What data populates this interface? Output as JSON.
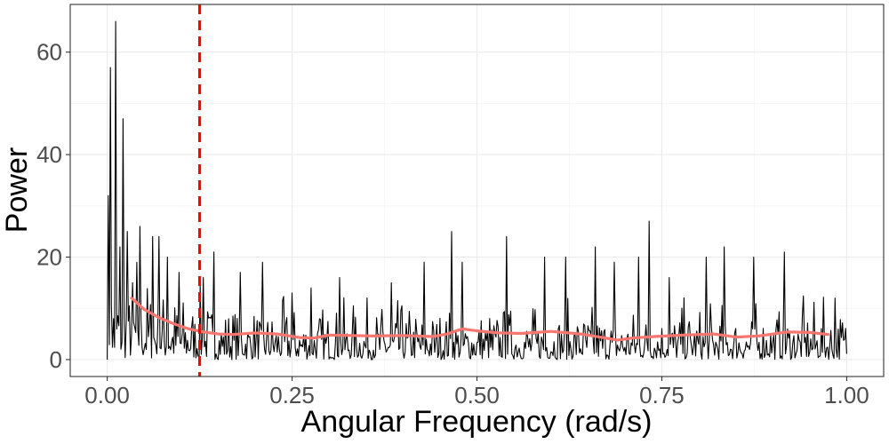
{
  "chart_data": {
    "type": "line",
    "xlabel": "Angular Frequency (rad/s)",
    "ylabel": "Power",
    "xlim": [
      -0.05,
      1.05
    ],
    "ylim": [
      -3.3,
      69.3
    ],
    "x_ticks": [
      0.0,
      0.25,
      0.5,
      0.75,
      1.0
    ],
    "x_tick_labels": [
      "0.00",
      "0.25",
      "0.50",
      "0.75",
      "1.00"
    ],
    "y_ticks": [
      0,
      20,
      40,
      60
    ],
    "y_tick_labels": [
      "0",
      "20",
      "40",
      "60"
    ],
    "grid": true,
    "periodogram": {
      "x_start": 0.0,
      "x_end": 1.0,
      "color": "#000000",
      "peaks": [
        {
          "x": 0.002,
          "y": 32
        },
        {
          "x": 0.005,
          "y": 57
        },
        {
          "x": 0.008,
          "y": 8
        },
        {
          "x": 0.012,
          "y": 66
        },
        {
          "x": 0.017,
          "y": 22
        },
        {
          "x": 0.022,
          "y": 47
        },
        {
          "x": 0.027,
          "y": 25
        },
        {
          "x": 0.04,
          "y": 19
        },
        {
          "x": 0.045,
          "y": 26
        },
        {
          "x": 0.062,
          "y": 24
        },
        {
          "x": 0.07,
          "y": 24
        },
        {
          "x": 0.082,
          "y": 20
        },
        {
          "x": 0.097,
          "y": 17
        },
        {
          "x": 0.13,
          "y": 16
        },
        {
          "x": 0.145,
          "y": 21
        },
        {
          "x": 0.18,
          "y": 17
        },
        {
          "x": 0.21,
          "y": 19
        },
        {
          "x": 0.25,
          "y": 13
        },
        {
          "x": 0.275,
          "y": 14
        },
        {
          "x": 0.315,
          "y": 16
        },
        {
          "x": 0.385,
          "y": 15
        },
        {
          "x": 0.428,
          "y": 19
        },
        {
          "x": 0.465,
          "y": 25
        },
        {
          "x": 0.48,
          "y": 19
        },
        {
          "x": 0.54,
          "y": 24
        },
        {
          "x": 0.592,
          "y": 20
        },
        {
          "x": 0.62,
          "y": 20
        },
        {
          "x": 0.66,
          "y": 22
        },
        {
          "x": 0.685,
          "y": 19
        },
        {
          "x": 0.718,
          "y": 20
        },
        {
          "x": 0.733,
          "y": 27
        },
        {
          "x": 0.76,
          "y": 16
        },
        {
          "x": 0.81,
          "y": 20
        },
        {
          "x": 0.835,
          "y": 22
        },
        {
          "x": 0.875,
          "y": 20
        },
        {
          "x": 0.915,
          "y": 21
        },
        {
          "x": 0.985,
          "y": 12
        }
      ]
    },
    "smooth": {
      "color": "#f8766d",
      "x": [
        0.033,
        0.05,
        0.07,
        0.09,
        0.11,
        0.13,
        0.15,
        0.17,
        0.2,
        0.23,
        0.26,
        0.28,
        0.3,
        0.33,
        0.36,
        0.4,
        0.44,
        0.46,
        0.48,
        0.5,
        0.53,
        0.56,
        0.6,
        0.64,
        0.67,
        0.69,
        0.71,
        0.74,
        0.78,
        0.82,
        0.85,
        0.88,
        0.92,
        0.95,
        0.975
      ],
      "y": [
        12,
        9.8,
        8.2,
        7.0,
        6.0,
        5.4,
        5.0,
        4.9,
        5.2,
        5.0,
        4.3,
        4.2,
        4.8,
        4.7,
        4.6,
        4.7,
        4.5,
        5.0,
        6.0,
        5.6,
        5.2,
        5.1,
        5.5,
        5.0,
        4.3,
        3.8,
        4.2,
        4.5,
        4.8,
        5.0,
        4.4,
        4.6,
        5.4,
        5.3,
        4.9
      ]
    },
    "vline": {
      "x": 0.125,
      "color": "#ff0000",
      "dash": true
    }
  }
}
